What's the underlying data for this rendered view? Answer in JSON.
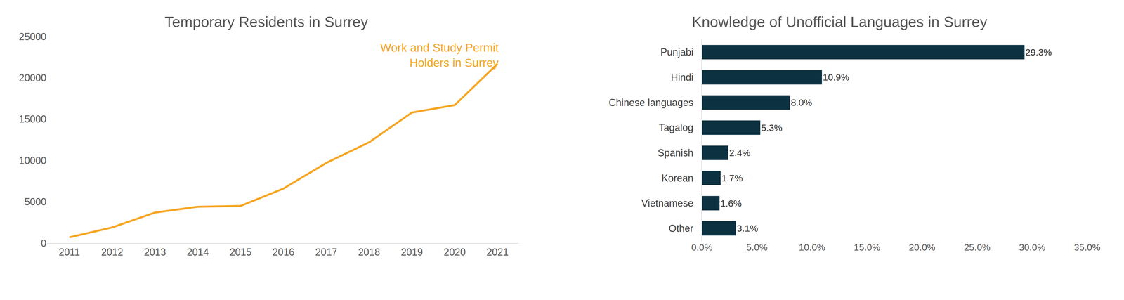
{
  "chart_data": [
    {
      "type": "line",
      "title": "Temporary Residents in Surrey",
      "x": [
        2011,
        2012,
        2013,
        2014,
        2015,
        2016,
        2017,
        2018,
        2019,
        2020,
        2021
      ],
      "series": [
        {
          "name": "Work and Study Permit\nHolders in Surrey",
          "color": "#f5a623",
          "values": [
            700,
            1900,
            3700,
            4400,
            4500,
            6600,
            9700,
            12200,
            15800,
            16700,
            21700
          ]
        }
      ],
      "xlim": [
        2010.47,
        2021.5
      ],
      "xticks": [
        2011,
        2012,
        2013,
        2014,
        2015,
        2016,
        2017,
        2018,
        2019,
        2020,
        2021
      ],
      "ylim": [
        0,
        25000
      ],
      "yticks": [
        0,
        5000,
        10000,
        15000,
        20000,
        25000
      ],
      "grid": false
    },
    {
      "type": "bar",
      "orientation": "horizontal",
      "title": "Knowledge of Unofficial Languages in Surrey",
      "categories": [
        "Punjabi",
        "Hindi",
        "Chinese languages",
        "Tagalog",
        "Spanish",
        "Korean",
        "Vietnamese",
        "Other"
      ],
      "values": [
        29.3,
        10.9,
        8.0,
        5.3,
        2.4,
        1.7,
        1.6,
        3.1
      ],
      "value_labels": [
        "29.3%",
        "10.9%",
        "8.0%",
        "5.3%",
        "2.4%",
        "1.7%",
        "1.6%",
        "3.1%"
      ],
      "color": "#0c3140",
      "xlim": [
        0,
        35
      ],
      "xticks": [
        {
          "value": 0,
          "label": "0.0%"
        },
        {
          "value": 5,
          "label": "5.0%"
        },
        {
          "value": 10,
          "label": "10.0%"
        },
        {
          "value": 15,
          "label": "15.0%"
        },
        {
          "value": 20,
          "label": "20.0%"
        },
        {
          "value": 25,
          "label": "25.0%"
        },
        {
          "value": 30,
          "label": "30.0%"
        },
        {
          "value": 35,
          "label": "35.0%"
        }
      ],
      "grid": false,
      "data_labels": true
    }
  ]
}
